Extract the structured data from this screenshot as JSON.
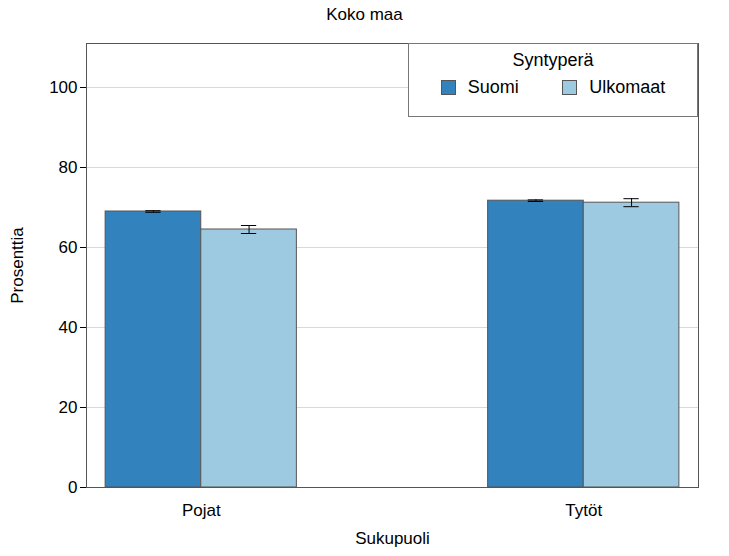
{
  "chart_data": {
    "type": "bar",
    "title": "Koko maa",
    "x_label": "Sukupuoli",
    "y_label": "Prosenttia",
    "categories": [
      "Pojat",
      "Tytöt"
    ],
    "series": [
      {
        "name": "Suomi",
        "color": "#3182bd",
        "values": [
          69.0,
          71.7
        ],
        "error_low": [
          68.8,
          71.5
        ],
        "error_high": [
          69.2,
          71.9
        ]
      },
      {
        "name": "Ulkomaat",
        "color": "#9ecae1",
        "values": [
          64.5,
          71.2
        ],
        "error_low": [
          63.5,
          70.2
        ],
        "error_high": [
          65.5,
          72.2
        ]
      }
    ],
    "ylim": [
      0,
      111
    ],
    "yticks": [
      0,
      20,
      40,
      60,
      80,
      100
    ],
    "grid": true,
    "legend": "upper right",
    "legend_title": "Syntyperä"
  }
}
